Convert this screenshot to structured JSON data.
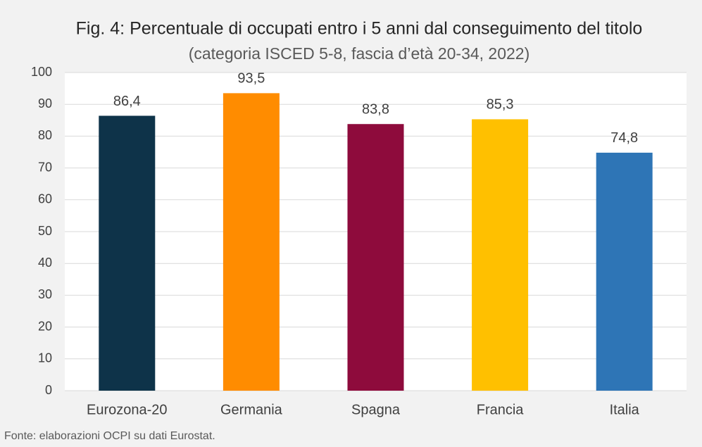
{
  "chart_data": {
    "type": "bar",
    "title": "Fig. 4: Percentuale di occupati entro i 5 anni dal conseguimento del titolo",
    "subtitle": "(categoria ISCED 5-8, fascia d’età 20-34, 2022)",
    "categories": [
      "Eurozona-20",
      "Germania",
      "Spagna",
      "Francia",
      "Italia"
    ],
    "values": [
      86.4,
      93.5,
      83.8,
      85.3,
      74.8
    ],
    "value_labels": [
      "86,4",
      "93,5",
      "83,8",
      "85,3",
      "74,8"
    ],
    "colors": [
      "#0e3349",
      "#ff8c00",
      "#8e0b3c",
      "#ffc000",
      "#2e75b6"
    ],
    "ylim": [
      0,
      100
    ],
    "yticks": [
      0,
      10,
      20,
      30,
      40,
      50,
      60,
      70,
      80,
      90,
      100
    ],
    "grid": true,
    "source": "Fonte: elaborazioni OCPI su dati Eurostat."
  }
}
